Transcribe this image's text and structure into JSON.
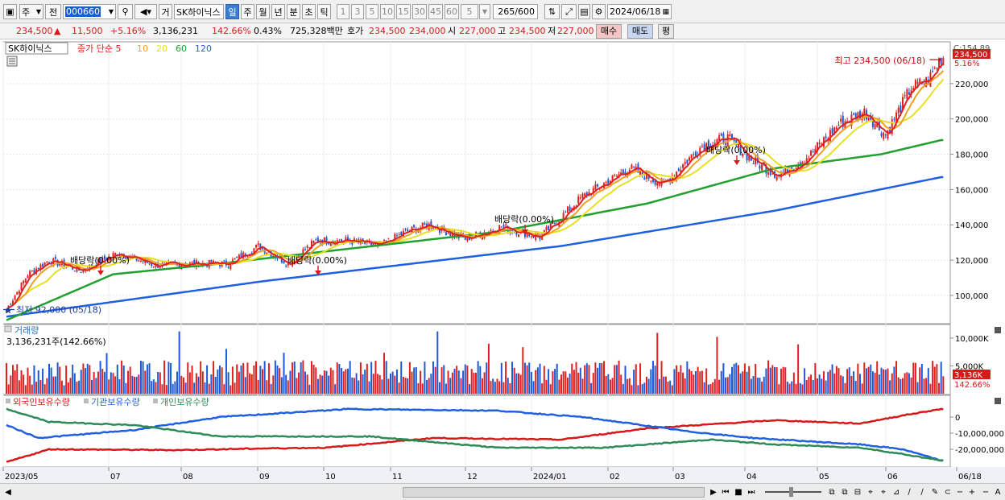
{
  "toolbar": {
    "period_type": "주",
    "prev_label": "전",
    "stock_code": "000660",
    "trade_btn": "거",
    "stock_name": "SK하이닉스",
    "periods": [
      "일",
      "주",
      "월",
      "년",
      "분",
      "초",
      "틱"
    ],
    "intervals": [
      "1",
      "3",
      "5",
      "10",
      "15",
      "30",
      "45",
      "60"
    ],
    "count_select": "5",
    "range": "265",
    "range_total": "/600",
    "date": "2024/06/18"
  },
  "quote": {
    "price": "234,500",
    "up_arrow": "▲",
    "change": "11,500",
    "change_pct": "+5.16%",
    "volume": "3,136,231",
    "volume_ratio": "142.66%",
    "turnover": "0.43%",
    "amount": "725,328백만",
    "hoga_label": "호가",
    "hoga_ask": "234,500",
    "hoga_bid": "234,000",
    "open_label": "시",
    "open": "227,000",
    "high_label": "고",
    "high": "234,500",
    "low_label": "저",
    "low": "227,000",
    "buy_btn": "매수",
    "sell_btn": "매도",
    "eval_btn": "평"
  },
  "legend": {
    "stock": "SK하이닉스",
    "ma_prefix": "종가 단순",
    "ma": [
      {
        "period": "5",
        "color": "#e02020"
      },
      {
        "period": "10",
        "color": "#f0a020"
      },
      {
        "period": "20",
        "color": "#e8e020"
      },
      {
        "period": "60",
        "color": "#22a030"
      },
      {
        "period": "120",
        "color": "#2060e0"
      }
    ]
  },
  "price_axis": {
    "ticks": [
      "220,000",
      "200,000",
      "180,000",
      "160,000",
      "140,000",
      "120,000",
      "100,000"
    ],
    "top_label": "C:154.89",
    "current": "234,500",
    "current_pct": "5.16%"
  },
  "annotations": {
    "high": "최고 234,500 (06/18)",
    "low": "최저 92,000 (05/18)",
    "dividend": "배당락(0.00%)"
  },
  "volume_panel": {
    "title": "거래량",
    "value": "3,136,231주(142.66%)",
    "ticks": [
      "10,000K",
      "5,000K"
    ],
    "current": "3,136K",
    "current_pct": "142.66%"
  },
  "holding_panel": {
    "legend": [
      "외국인보유수량",
      "기관보유수량",
      "개인보유수량"
    ],
    "colors": [
      "#d61a1a",
      "#2060e0",
      "#2e8b57"
    ],
    "ticks": [
      "0",
      "-10,000,000",
      "-20,000,000"
    ]
  },
  "x_axis": {
    "labels": [
      "2023/05",
      "07",
      "08",
      "09",
      "10",
      "11",
      "12",
      "2024/01",
      "02",
      "03",
      "04",
      "05",
      "06",
      "06/18"
    ]
  },
  "chart_data": [
    {
      "type": "candlestick",
      "title": "SK하이닉스",
      "ylim": [
        84000,
        240000
      ],
      "high_value": 234500,
      "low_value": 92000,
      "price_anchors": [
        [
          0,
          92000
        ],
        [
          10,
          112000
        ],
        [
          20,
          120000
        ],
        [
          35,
          114000
        ],
        [
          52,
          124000
        ],
        [
          70,
          117000
        ],
        [
          88,
          118000
        ],
        [
          104,
          118000
        ],
        [
          118,
          128000
        ],
        [
          132,
          118000
        ],
        [
          145,
          131000
        ],
        [
          160,
          131000
        ],
        [
          175,
          128000
        ],
        [
          187,
          136000
        ],
        [
          198,
          140000
        ],
        [
          215,
          132000
        ],
        [
          232,
          139000
        ],
        [
          250,
          133000
        ],
        [
          270,
          156000
        ],
        [
          292,
          172000
        ],
        [
          308,
          163000
        ],
        [
          326,
          185000
        ],
        [
          338,
          189000
        ],
        [
          350,
          176000
        ],
        [
          362,
          168000
        ],
        [
          376,
          179000
        ],
        [
          390,
          197000
        ],
        [
          402,
          204000
        ],
        [
          412,
          191000
        ],
        [
          424,
          218000
        ],
        [
          432,
          222000
        ],
        [
          438,
          234500
        ]
      ],
      "ma120_anchors": [
        [
          0,
          88000
        ],
        [
          120,
          108000
        ],
        [
          260,
          128000
        ],
        [
          360,
          148000
        ],
        [
          438,
          167000
        ]
      ],
      "ma60_anchors": [
        [
          0,
          86000
        ],
        [
          50,
          112000
        ],
        [
          100,
          118000
        ],
        [
          150,
          125000
        ],
        [
          230,
          136000
        ],
        [
          300,
          152000
        ],
        [
          360,
          172000
        ],
        [
          410,
          180000
        ],
        [
          438,
          188000
        ]
      ]
    },
    {
      "type": "bar",
      "title": "거래량",
      "ylim": [
        0,
        12000000
      ],
      "last_value": 3136231
    },
    {
      "type": "line",
      "series": [
        {
          "name": "외국인보유수량",
          "anchors": [
            [
              0,
              -28000000
            ],
            [
              20,
              -20000000
            ],
            [
              80,
              -20500000
            ],
            [
              120,
              -19500000
            ],
            [
              150,
              -19000000
            ],
            [
              200,
              -13000000
            ],
            [
              260,
              -14000000
            ],
            [
              300,
              -7000000
            ],
            [
              360,
              -2000000
            ],
            [
              400,
              -4000000
            ],
            [
              420,
              1000000
            ],
            [
              438,
              5000000
            ]
          ]
        },
        {
          "name": "기관보유수량",
          "anchors": [
            [
              0,
              -5000000
            ],
            [
              15,
              -13000000
            ],
            [
              60,
              -8000000
            ],
            [
              100,
              0
            ],
            [
              160,
              5000000
            ],
            [
              230,
              4000000
            ],
            [
              270,
              0
            ],
            [
              320,
              -9000000
            ],
            [
              350,
              -13000000
            ],
            [
              400,
              -17000000
            ],
            [
              420,
              -20000000
            ],
            [
              438,
              -27000000
            ]
          ]
        },
        {
          "name": "개인보유수량",
          "anchors": [
            [
              0,
              5000000
            ],
            [
              20,
              -3000000
            ],
            [
              60,
              -5000000
            ],
            [
              100,
              -12000000
            ],
            [
              170,
              -12000000
            ],
            [
              230,
              -19000000
            ],
            [
              280,
              -19000000
            ],
            [
              330,
              -14000000
            ],
            [
              360,
              -17000000
            ],
            [
              400,
              -19000000
            ],
            [
              420,
              -23000000
            ],
            [
              438,
              -27000000
            ]
          ]
        }
      ]
    }
  ]
}
